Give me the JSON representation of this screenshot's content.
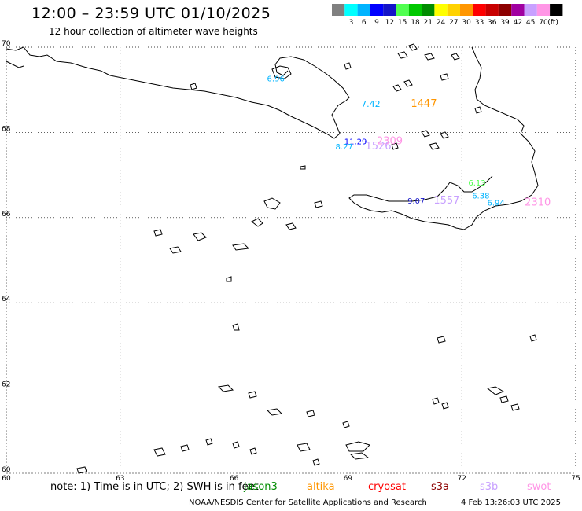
{
  "title": "12:00 – 23:59 UTC 01/10/2025",
  "subtitle": "12 hour collection of altimeter wave heights",
  "colorbar": {
    "unit": "(ft)",
    "bins": [
      {
        "color": "#808080",
        "label": ""
      },
      {
        "color": "#00ffff",
        "label": "3"
      },
      {
        "color": "#00b4ff",
        "label": "6"
      },
      {
        "color": "#0000ff",
        "label": "9"
      },
      {
        "color": "#1414c8",
        "label": "12"
      },
      {
        "color": "#50ff50",
        "label": "15"
      },
      {
        "color": "#00c800",
        "label": "18"
      },
      {
        "color": "#008c00",
        "label": "21"
      },
      {
        "color": "#ffff00",
        "label": "24"
      },
      {
        "color": "#ffd200",
        "label": "27"
      },
      {
        "color": "#ff9600",
        "label": "30"
      },
      {
        "color": "#ff0000",
        "label": "33"
      },
      {
        "color": "#c80000",
        "label": "36"
      },
      {
        "color": "#8c0000",
        "label": "39"
      },
      {
        "color": "#a000a0",
        "label": "42"
      },
      {
        "color": "#c8a0ff",
        "label": "45"
      },
      {
        "color": "#ff96e6",
        "label": "70"
      },
      {
        "color": "#000000",
        "label": ""
      }
    ]
  },
  "map": {
    "lat_range": [
      60,
      70
    ],
    "lon_range": [
      60,
      75
    ],
    "lat_ticks": [
      "70",
      "68",
      "66",
      "64",
      "62",
      "60"
    ],
    "lon_ticks": [
      "60",
      "63",
      "66",
      "69",
      "72",
      "75"
    ],
    "wave_labels": [
      {
        "text": "6.96",
        "lon": 67.1,
        "lat": 69.2,
        "color": "#00b4ff",
        "size": 10
      },
      {
        "text": "7.42",
        "lon": 69.6,
        "lat": 68.6,
        "color": "#00b4ff",
        "size": 11
      },
      {
        "text": "1447",
        "lon": 71.0,
        "lat": 68.6,
        "color": "#ff9600",
        "size": 13
      },
      {
        "text": "11.29",
        "lon": 69.2,
        "lat": 67.72,
        "color": "#0000ff",
        "size": 10
      },
      {
        "text": "2309",
        "lon": 70.1,
        "lat": 67.72,
        "color": "#ff96e6",
        "size": 13
      },
      {
        "text": "8.27",
        "lon": 68.9,
        "lat": 67.6,
        "color": "#00b4ff",
        "size": 10
      },
      {
        "text": "1526",
        "lon": 69.8,
        "lat": 67.6,
        "color": "#c8a0ff",
        "size": 13
      },
      {
        "text": "6.13",
        "lon": 72.4,
        "lat": 66.75,
        "color": "#50ff50",
        "size": 10
      },
      {
        "text": "6.38",
        "lon": 72.5,
        "lat": 66.45,
        "color": "#00b4ff",
        "size": 10
      },
      {
        "text": "9.07",
        "lon": 70.8,
        "lat": 66.33,
        "color": "#1414c8",
        "size": 10
      },
      {
        "text": "1557",
        "lon": 71.6,
        "lat": 66.33,
        "color": "#c8a0ff",
        "size": 13
      },
      {
        "text": "6.94",
        "lon": 72.9,
        "lat": 66.28,
        "color": "#00b4ff",
        "size": 10
      },
      {
        "text": "2310",
        "lon": 74.0,
        "lat": 66.28,
        "color": "#ff96e6",
        "size": 13
      }
    ]
  },
  "note": {
    "text": "note: 1) Time is in UTC; 2) SWH is in feet",
    "satellites": [
      {
        "name": "jason3",
        "color": "#008c00"
      },
      {
        "name": "altika",
        "color": "#ff9600"
      },
      {
        "name": "cryosat",
        "color": "#ff0000"
      },
      {
        "name": "s3a",
        "color": "#8c0000"
      },
      {
        "name": "s3b",
        "color": "#c8a0ff"
      },
      {
        "name": "swot",
        "color": "#ff96e6"
      }
    ]
  },
  "footer": {
    "source": "NOAA/NESDIS Center for Satellite Applications and Research",
    "generated": "4 Feb 13:26:03 UTC 2025"
  }
}
